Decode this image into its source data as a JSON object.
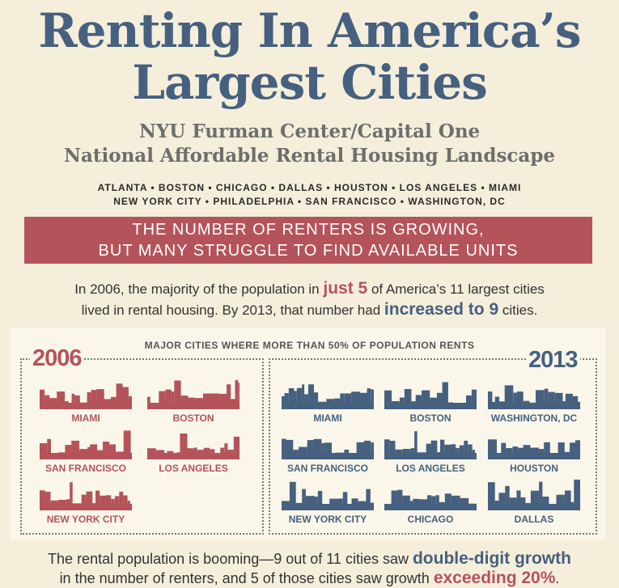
{
  "title": {
    "line1": "Renting In America’s",
    "line2": "Largest Cities"
  },
  "subtitle": {
    "line1": "NYU Furman Center/Capital One",
    "line2": "National Affordable Rental Housing Landscape"
  },
  "cities_list": {
    "line1": "ATLANTA • BOSTON • CHICAGO • DALLAS • HOUSTON • LOS ANGELES • MIAMI",
    "line2": "NEW YORK CITY • PHILADELPHIA • SAN FRANCISCO • WASHINGTON, DC"
  },
  "banner": {
    "line1": "THE NUMBER OF RENTERS IS GROWING,",
    "line2": "BUT MANY STRUGGLE TO FIND AVAILABLE UNITS"
  },
  "intro": {
    "p1": "In 2006, the majority of the population in ",
    "h1": "just 5",
    "p2": " of America’s 11 largest cities",
    "p3": "lived in rental housing. By 2013, that number had ",
    "h2": "increased to 9",
    "p4": " cities."
  },
  "panel": {
    "heading": "MAJOR CITIES WHERE MORE THAN 50% OF POPULATION RENTS",
    "left": {
      "year": "2006",
      "color": "#b5535a",
      "cities": [
        "MIAMI",
        "BOSTON",
        "SAN FRANCISCO",
        "LOS ANGELES",
        "NEW YORK CITY"
      ]
    },
    "right": {
      "year": "2013",
      "color": "#46607f",
      "cities": [
        "MIAMI",
        "BOSTON",
        "WASHINGTON, DC",
        "SAN FRANCISCO",
        "LOS ANGELES",
        "HOUSTON",
        "NEW YORK CITY",
        "CHICAGO",
        "DALLAS"
      ]
    }
  },
  "bottom": {
    "p1": "The rental population is booming—9 out of 11 cities saw ",
    "h1": "double-digit growth",
    "p2": "in the number of renters, and 5 of those cities saw growth ",
    "h2": "exceeding 20%",
    "p3": "."
  }
}
